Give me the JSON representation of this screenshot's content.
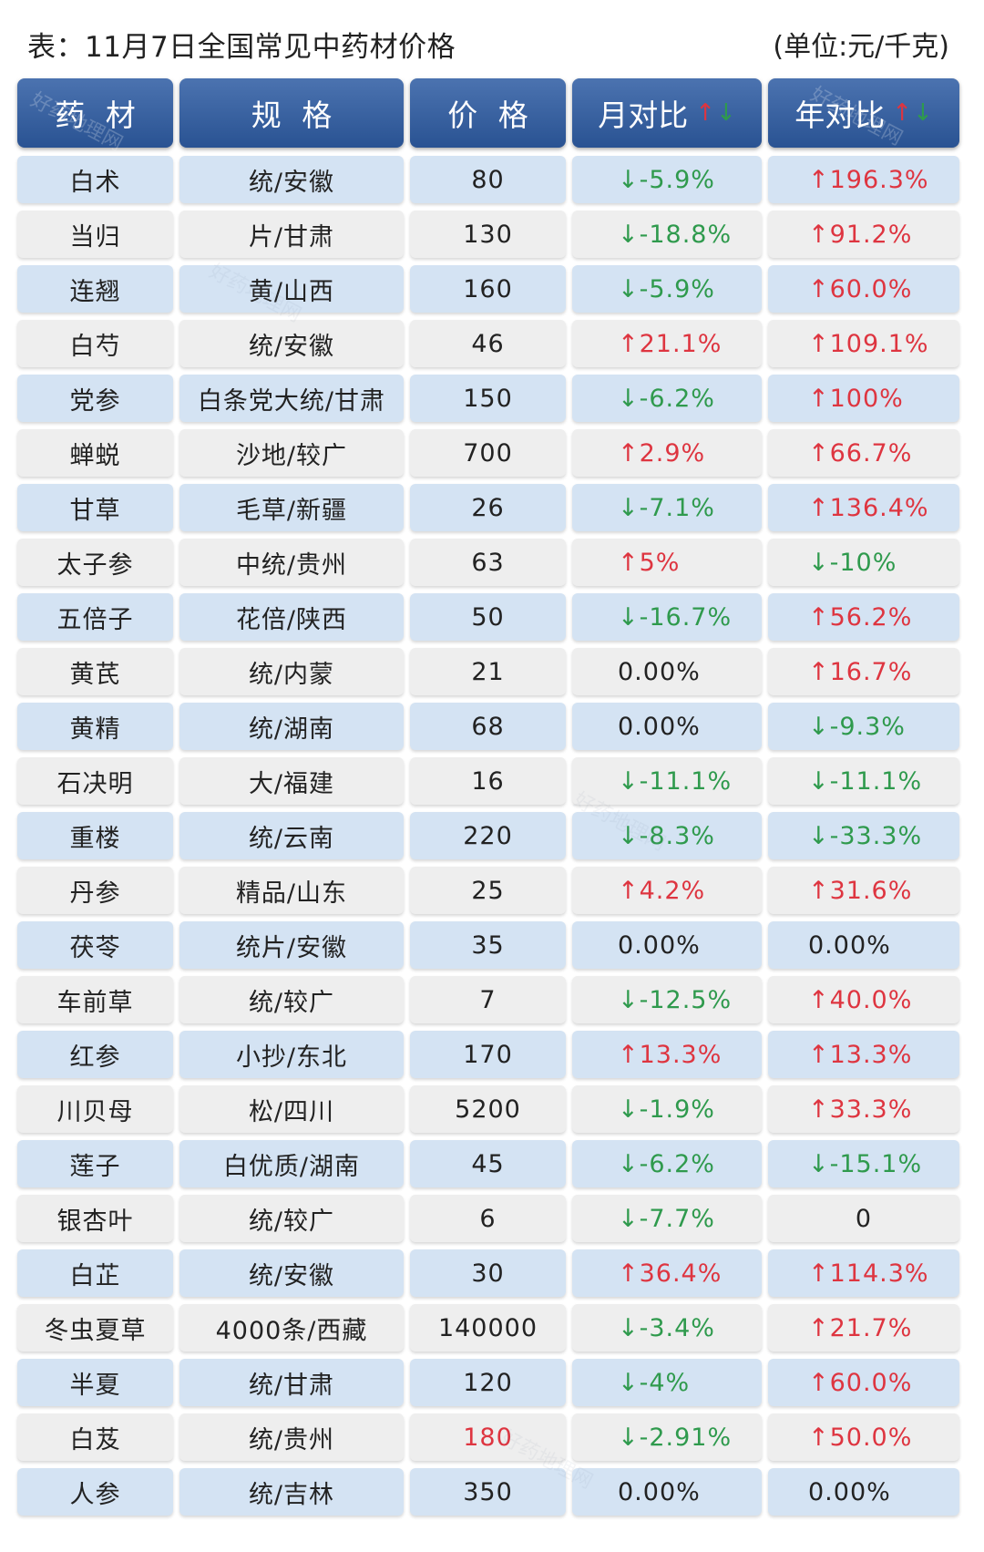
{
  "watermark": "好药地理网",
  "colors": {
    "header_bg": "#2e5ca3",
    "row_blue": "#d4e3f3",
    "row_grey": "#eeeeee",
    "up": "#de3540",
    "down": "#2f9a4d",
    "text": "#222222"
  },
  "chart_data": {
    "type": "table",
    "title": "表：11月7日全国常见中药材价格",
    "unit": "(单位:元/千克)",
    "columns": [
      "药 材",
      "规 格",
      "价 格",
      "月对比",
      "年对比"
    ],
    "header_arrows": {
      "up": "↑",
      "down": "↓"
    },
    "rows": [
      [
        "白术",
        "统/安徽",
        "80",
        "↓-5.9%",
        "↑196.3%"
      ],
      [
        "当归",
        "片/甘肃",
        "130",
        "↓-18.8%",
        "↑91.2%"
      ],
      [
        "连翘",
        "黄/山西",
        "160",
        "↓-5.9%",
        "↑60.0%"
      ],
      [
        "白芍",
        "统/安徽",
        "46",
        "↑21.1%",
        "↑109.1%"
      ],
      [
        "党参",
        "白条党大统/甘肃",
        "150",
        "↓-6.2%",
        "↑100%"
      ],
      [
        "蝉蜕",
        "沙地/较广",
        "700",
        "↑2.9%",
        "↑66.7%"
      ],
      [
        "甘草",
        "毛草/新疆",
        "26",
        "↓-7.1%",
        "↑136.4%"
      ],
      [
        "太子参",
        "中统/贵州",
        "63",
        "↑5%",
        "↓-10%"
      ],
      [
        "五倍子",
        "花倍/陕西",
        "50",
        "↓-16.7%",
        "↑56.2%"
      ],
      [
        "黄芪",
        "统/内蒙",
        "21",
        "0.00%",
        "↑16.7%"
      ],
      [
        "黄精",
        "统/湖南",
        "68",
        "0.00%",
        "↓-9.3%"
      ],
      [
        "石决明",
        "大/福建",
        "16",
        "↓-11.1%",
        "↓-11.1%"
      ],
      [
        "重楼",
        "统/云南",
        "220",
        "↓-8.3%",
        "↓-33.3%"
      ],
      [
        "丹参",
        "精品/山东",
        "25",
        "↑4.2%",
        "↑31.6%"
      ],
      [
        "茯苓",
        "统片/安徽",
        "35",
        "0.00%",
        "0.00%"
      ],
      [
        "车前草",
        "统/较广",
        "7",
        "↓-12.5%",
        "↑40.0%"
      ],
      [
        "红参",
        "小抄/东北",
        "170",
        "↑13.3%",
        "↑13.3%"
      ],
      [
        "川贝母",
        "松/四川",
        "5200",
        "↓-1.9%",
        "↑33.3%"
      ],
      [
        "莲子",
        "白优质/湖南",
        "45",
        "↓-6.2%",
        "↓-15.1%"
      ],
      [
        "银杏叶",
        "统/较广",
        "6",
        "↓-7.7%",
        "0"
      ],
      [
        "白芷",
        "统/安徽",
        "30",
        "↑36.4%",
        "↑114.3%"
      ],
      [
        "冬虫夏草",
        "4000条/西藏",
        "140000",
        "↓-3.4%",
        "↑21.7%"
      ],
      [
        "半夏",
        "统/甘肃",
        "120",
        "↓-4%",
        "↑60.0%"
      ],
      [
        "白芨",
        "统/贵州",
        "180",
        "↓-2.91%",
        "↑50.0%"
      ],
      [
        "人参",
        "统/吉林",
        "350",
        "0.00%",
        "0.00%"
      ]
    ],
    "highlights": [
      {
        "row": 23,
        "col": 2,
        "color": "#de3540"
      }
    ]
  }
}
